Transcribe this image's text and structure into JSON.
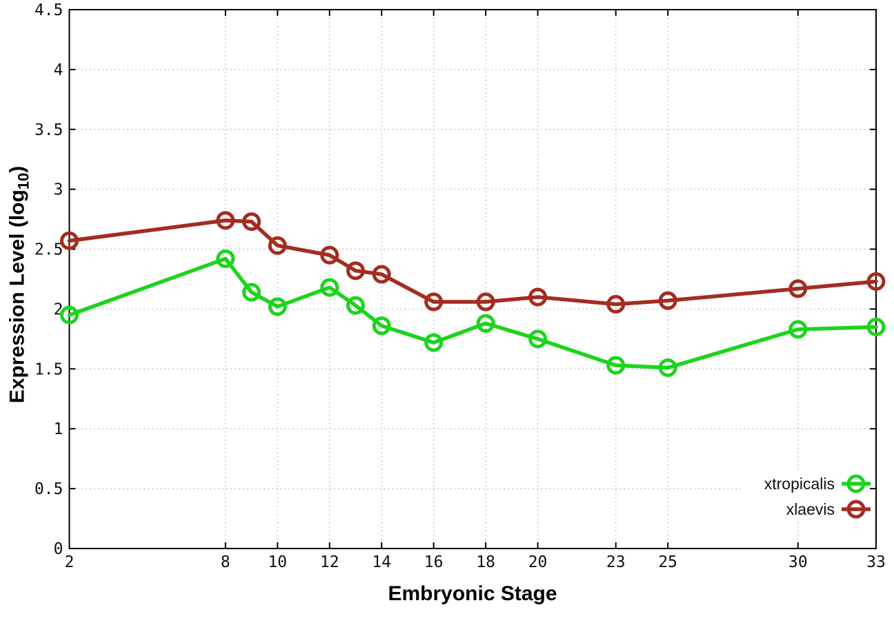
{
  "figure": {
    "xlabel": "Embryonic Stage",
    "ylabel_prefix": "Expression Level (log",
    "ylabel_sub": "10",
    "ylabel_suffix": ")"
  },
  "legend": {
    "position": "bottom-right",
    "items": [
      {
        "label": "xtropicalis",
        "color": "#1cd41c"
      },
      {
        "label": "xlaevis",
        "color": "#a42c20"
      }
    ]
  },
  "chart_data": {
    "type": "line",
    "title": "",
    "xlabel": "Embryonic Stage",
    "ylabel": "Expression Level (log10)",
    "x": [
      2,
      8,
      9,
      10,
      12,
      13,
      14,
      16,
      18,
      20,
      23,
      25,
      30,
      33
    ],
    "series": [
      {
        "name": "xtropicalis",
        "color": "#1cd41c",
        "values": [
          1.95,
          2.42,
          2.14,
          2.02,
          2.18,
          2.03,
          1.86,
          1.72,
          1.88,
          1.75,
          1.53,
          1.51,
          1.83,
          1.85
        ]
      },
      {
        "name": "xlaevis",
        "color": "#a42c20",
        "values": [
          2.57,
          2.74,
          2.73,
          2.53,
          2.45,
          2.32,
          2.29,
          2.06,
          2.06,
          2.1,
          2.04,
          2.07,
          2.17,
          2.23
        ]
      }
    ],
    "xticks": [
      2,
      8,
      10,
      12,
      14,
      16,
      18,
      20,
      23,
      25,
      30,
      33
    ],
    "yticks": [
      0,
      0.5,
      1,
      1.5,
      2,
      2.5,
      3,
      3.5,
      4,
      4.5
    ],
    "xlim": [
      2,
      33
    ],
    "ylim": [
      0,
      4.5
    ],
    "grid": true,
    "grid_style": "dotted",
    "grid_color": "#b8b8b8",
    "border_color": "#000000",
    "marker": "open-circle",
    "legend_position": "bottom-right"
  }
}
